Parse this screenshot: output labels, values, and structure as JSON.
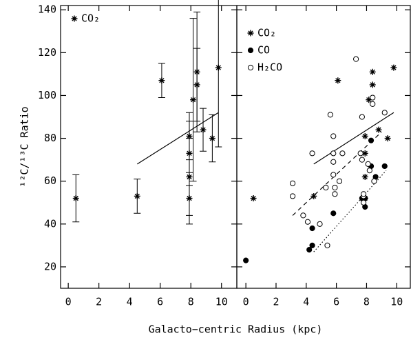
{
  "xlabel": "Galacto−centric Radius (kpc)",
  "chart_data": [
    {
      "type": "scatter",
      "ylabel": "¹²C/¹³C Ratio",
      "legend": "upper left",
      "xlim": [
        -0.5,
        11
      ],
      "ylim": [
        10,
        142
      ],
      "xticks": [
        0,
        2,
        4,
        6,
        8,
        10
      ],
      "yticks": [
        20,
        40,
        60,
        80,
        100,
        120,
        140
      ],
      "series": [
        {
          "name": "CO₂",
          "marker": "star",
          "color": "#000000",
          "x": [
            0.5,
            4.5,
            6.1,
            7.9,
            7.9,
            7.9,
            7.9,
            8.15,
            8.4,
            8.4,
            8.8,
            9.4,
            9.8
          ],
          "values": [
            52,
            53,
            107,
            81,
            73,
            62,
            52,
            98,
            111,
            105,
            84,
            80,
            113
          ],
          "errors": [
            11,
            8,
            8,
            11,
            15,
            18,
            12,
            38,
            28,
            17,
            10,
            11,
            37
          ]
        }
      ],
      "lines": [
        {
          "style": "solid",
          "x": [
            4.5,
            9.8
          ],
          "values": [
            68,
            92
          ]
        }
      ]
    },
    {
      "type": "scatter",
      "legend": "upper left",
      "xlim": [
        -0.6,
        10.9
      ],
      "ylim": [
        10,
        142
      ],
      "xticks": [
        0,
        2,
        4,
        6,
        8,
        10
      ],
      "yticks": [
        20,
        40,
        60,
        80,
        100,
        120,
        140
      ],
      "series": [
        {
          "name": "CO₂",
          "marker": "star",
          "color": "#000000",
          "x": [
            0.5,
            4.5,
            6.1,
            7.9,
            7.9,
            7.9,
            7.9,
            8.15,
            8.4,
            8.4,
            8.8,
            9.4,
            9.8
          ],
          "values": [
            52,
            53,
            107,
            81,
            73,
            62,
            52,
            98,
            111,
            105,
            84,
            80,
            113
          ]
        },
        {
          "name": "CO",
          "marker": "filled-circle",
          "color": "#000000",
          "x": [
            0,
            4.2,
            4.4,
            4.4,
            5.8,
            7.7,
            7.9,
            7.9,
            8.3,
            8.3,
            8.6,
            9.2
          ],
          "values": [
            23,
            28,
            30,
            38,
            45,
            52,
            48,
            52,
            79,
            67,
            62,
            67
          ]
        },
        {
          "name": "H₂CO",
          "marker": "open-circle",
          "color": "#000000",
          "x": [
            3.1,
            3.1,
            3.8,
            4.1,
            4.4,
            4.9,
            5.3,
            5.4,
            5.6,
            5.8,
            5.8,
            5.8,
            5.8,
            5.9,
            5.9,
            6.2,
            6.4,
            7.3,
            7.6,
            7.7,
            7.7,
            7.8,
            7.8,
            7.8,
            8.1,
            8.2,
            8.4,
            8.4,
            8.5,
            9.2
          ],
          "values": [
            59,
            53,
            44,
            41,
            73,
            40,
            57,
            30,
            91,
            81,
            73,
            69,
            63,
            57,
            54,
            60,
            73,
            117,
            73,
            70,
            90,
            53,
            54,
            50,
            68,
            65,
            99,
            96,
            60,
            92
          ]
        }
      ],
      "lines": [
        {
          "style": "solid",
          "x": [
            4.5,
            9.8
          ],
          "values": [
            68,
            92
          ]
        },
        {
          "style": "dashed",
          "x": [
            3.1,
            9.0
          ],
          "values": [
            44,
            83
          ]
        },
        {
          "style": "dotted",
          "x": [
            4.5,
            9.3
          ],
          "values": [
            27,
            65
          ]
        }
      ]
    }
  ]
}
